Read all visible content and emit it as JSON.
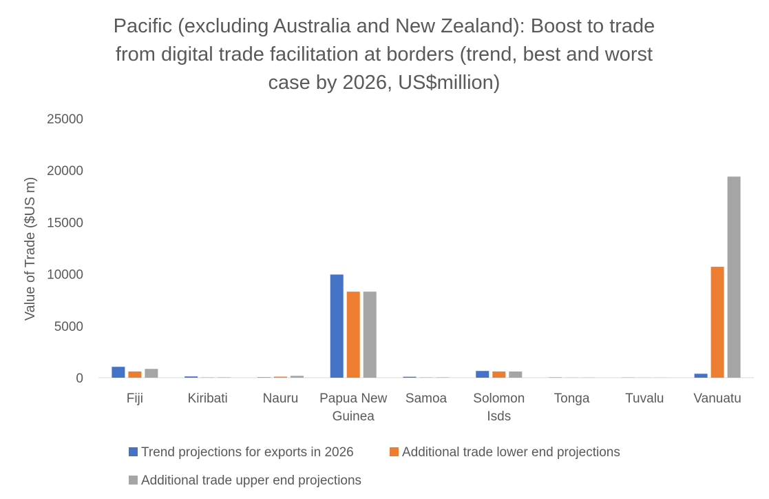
{
  "chart_data": {
    "type": "bar",
    "title_lines": [
      "Pacific (excluding Australia and New Zealand): Boost to trade",
      "from digital trade facilitation at borders (trend, best and worst",
      "case by 2026, US$million)"
    ],
    "ylabel": "Value of Trade ($US m)",
    "xlabel": "",
    "ylim": [
      0,
      25000
    ],
    "yticks": [
      0,
      5000,
      10000,
      15000,
      20000,
      25000
    ],
    "categories": [
      [
        "Fiji"
      ],
      [
        "Kiribati"
      ],
      [
        "Nauru"
      ],
      [
        "Papua New",
        "Guinea"
      ],
      [
        "Samoa"
      ],
      [
        "Solomon",
        "Isds"
      ],
      [
        "Tonga"
      ],
      [
        "Tuvalu"
      ],
      [
        "Vanuatu"
      ]
    ],
    "series": [
      {
        "name": "Trend projections for exports in 2026",
        "color": "#4472C4",
        "values": [
          1050,
          120,
          40,
          9950,
          90,
          650,
          30,
          15,
          380
        ]
      },
      {
        "name": "Additional trade lower end projections",
        "color": "#ED7D31",
        "values": [
          600,
          30,
          100,
          8300,
          30,
          600,
          15,
          10,
          10700
        ]
      },
      {
        "name": "Additional trade upper end projections",
        "color": "#A5A5A5",
        "values": [
          850,
          40,
          180,
          8300,
          40,
          600,
          20,
          10,
          19400
        ]
      }
    ],
    "legend_position": "bottom",
    "grid": false
  }
}
